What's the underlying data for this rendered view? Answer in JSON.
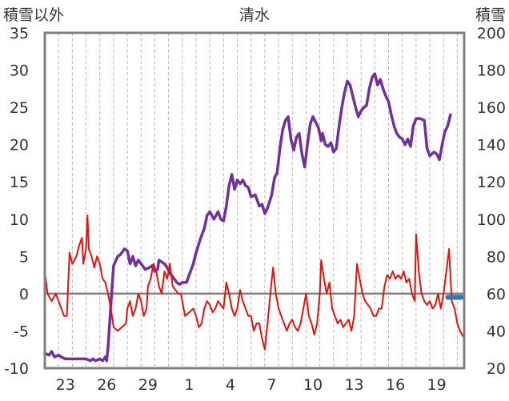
{
  "chart_data": {
    "type": "line",
    "title": "清水",
    "left_axis_label": "積雪以外",
    "right_axis_label": "積雪",
    "left_axis": {
      "min": -10,
      "max": 35,
      "ticks": [
        "35",
        "30",
        "25",
        "20",
        "15",
        "10",
        "5",
        "0",
        "-5",
        "-10"
      ]
    },
    "right_axis": {
      "min": 20,
      "max": 200,
      "ticks": [
        "200",
        "180",
        "160",
        "140",
        "120",
        "100",
        "80",
        "60",
        "40",
        "20"
      ]
    },
    "x_ticks": [
      "23",
      "26",
      "29",
      "1",
      "4",
      "7",
      "10",
      "13",
      "16",
      "19"
    ],
    "x_tick_day_index": [
      1.5,
      4.5,
      7.5,
      10.5,
      13.5,
      16.5,
      19.5,
      22.5,
      25.5,
      28.5
    ],
    "x_range_days": [
      0,
      30.5
    ],
    "grid": {
      "vertical": "dashed",
      "horizontal": "none"
    },
    "zero_line_value": 0,
    "series": [
      {
        "axis": "right",
        "color": "#7030a0",
        "points": [
          [
            0.0,
            28
          ],
          [
            0.3,
            27
          ],
          [
            0.5,
            29
          ],
          [
            0.7,
            26
          ],
          [
            1.0,
            27
          ],
          [
            1.2,
            26
          ],
          [
            1.5,
            25
          ],
          [
            2.0,
            25
          ],
          [
            2.5,
            25
          ],
          [
            3.0,
            25
          ],
          [
            3.3,
            24
          ],
          [
            3.5,
            25
          ],
          [
            3.7,
            24
          ],
          [
            4.0,
            25
          ],
          [
            4.2,
            24
          ],
          [
            4.4,
            26
          ],
          [
            4.5,
            24
          ],
          [
            4.6,
            31
          ],
          [
            4.8,
            54
          ],
          [
            5.0,
            75
          ],
          [
            5.3,
            80
          ],
          [
            5.5,
            81
          ],
          [
            5.8,
            84
          ],
          [
            6.0,
            83
          ],
          [
            6.2,
            76
          ],
          [
            6.4,
            80
          ],
          [
            6.6,
            75
          ],
          [
            6.8,
            78
          ],
          [
            7.0,
            76
          ],
          [
            7.3,
            73
          ],
          [
            7.6,
            74
          ],
          [
            7.8,
            75
          ],
          [
            8.0,
            72
          ],
          [
            8.2,
            73
          ],
          [
            8.3,
            78
          ],
          [
            8.5,
            77
          ],
          [
            8.7,
            76
          ],
          [
            8.9,
            74
          ],
          [
            9.1,
            71
          ],
          [
            9.3,
            69
          ],
          [
            9.6,
            66
          ],
          [
            9.8,
            65
          ],
          [
            10.0,
            66
          ],
          [
            10.3,
            66
          ],
          [
            10.5,
            70
          ],
          [
            10.8,
            76
          ],
          [
            11.0,
            82
          ],
          [
            11.3,
            89
          ],
          [
            11.6,
            95
          ],
          [
            11.8,
            102
          ],
          [
            12.0,
            104
          ],
          [
            12.3,
            100
          ],
          [
            12.6,
            104
          ],
          [
            12.8,
            100
          ],
          [
            13.0,
            99
          ],
          [
            13.2,
            107
          ],
          [
            13.4,
            118
          ],
          [
            13.6,
            124
          ],
          [
            13.8,
            116
          ],
          [
            14.0,
            121
          ],
          [
            14.2,
            119
          ],
          [
            14.4,
            121
          ],
          [
            14.6,
            118
          ],
          [
            14.8,
            117
          ],
          [
            15.0,
            112
          ],
          [
            15.3,
            113
          ],
          [
            15.6,
            107
          ],
          [
            15.8,
            108
          ],
          [
            16.0,
            103
          ],
          [
            16.2,
            106
          ],
          [
            16.5,
            113
          ],
          [
            16.7,
            122
          ],
          [
            16.9,
            125
          ],
          [
            17.1,
            138
          ],
          [
            17.3,
            148
          ],
          [
            17.5,
            153
          ],
          [
            17.7,
            155
          ],
          [
            17.9,
            143
          ],
          [
            18.1,
            137
          ],
          [
            18.3,
            144
          ],
          [
            18.5,
            146
          ],
          [
            18.7,
            135
          ],
          [
            18.9,
            128
          ],
          [
            19.1,
            140
          ],
          [
            19.3,
            151
          ],
          [
            19.5,
            155
          ],
          [
            19.7,
            152
          ],
          [
            19.9,
            149
          ],
          [
            20.1,
            142
          ],
          [
            20.2,
            146
          ],
          [
            20.4,
            140
          ],
          [
            20.6,
            139
          ],
          [
            20.8,
            141
          ],
          [
            21.0,
            136
          ],
          [
            21.2,
            138
          ],
          [
            21.4,
            150
          ],
          [
            21.6,
            160
          ],
          [
            21.8,
            168
          ],
          [
            22.0,
            174
          ],
          [
            22.2,
            172
          ],
          [
            22.4,
            166
          ],
          [
            22.6,
            160
          ],
          [
            22.8,
            155
          ],
          [
            23.0,
            158
          ],
          [
            23.2,
            160
          ],
          [
            23.4,
            161
          ],
          [
            23.6,
            170
          ],
          [
            23.8,
            176
          ],
          [
            24.0,
            178
          ],
          [
            24.2,
            172
          ],
          [
            24.4,
            175
          ],
          [
            24.6,
            170
          ],
          [
            24.8,
            166
          ],
          [
            25.0,
            163
          ],
          [
            25.2,
            156
          ],
          [
            25.4,
            150
          ],
          [
            25.6,
            146
          ],
          [
            25.8,
            144
          ],
          [
            26.0,
            143
          ],
          [
            26.2,
            140
          ],
          [
            26.4,
            143
          ],
          [
            26.6,
            139
          ],
          [
            26.8,
            150
          ],
          [
            27.0,
            154
          ],
          [
            27.3,
            154
          ],
          [
            27.6,
            153
          ],
          [
            27.8,
            138
          ],
          [
            28.0,
            134
          ],
          [
            28.3,
            136
          ],
          [
            28.5,
            135
          ],
          [
            28.7,
            132
          ],
          [
            28.9,
            140
          ],
          [
            29.1,
            147
          ],
          [
            29.3,
            150
          ],
          [
            29.5,
            156
          ]
        ]
      },
      {
        "axis": "left",
        "color": "#e8120a",
        "points": [
          [
            0.0,
            3
          ],
          [
            0.2,
            0
          ],
          [
            0.5,
            -1
          ],
          [
            0.8,
            0
          ],
          [
            1.0,
            -1
          ],
          [
            1.2,
            -2
          ],
          [
            1.4,
            -3
          ],
          [
            1.6,
            -3
          ],
          [
            1.8,
            5.5
          ],
          [
            2.0,
            4
          ],
          [
            2.3,
            5
          ],
          [
            2.5,
            6.5
          ],
          [
            2.7,
            7.5
          ],
          [
            2.8,
            4
          ],
          [
            3.0,
            6
          ],
          [
            3.1,
            10.5
          ],
          [
            3.2,
            6
          ],
          [
            3.4,
            5
          ],
          [
            3.6,
            3.5
          ],
          [
            3.8,
            5
          ],
          [
            4.0,
            4
          ],
          [
            4.2,
            2
          ],
          [
            4.4,
            1.5
          ],
          [
            4.6,
            0
          ],
          [
            4.8,
            -2
          ],
          [
            5.0,
            -4.5
          ],
          [
            5.3,
            -5
          ],
          [
            5.6,
            -4.5
          ],
          [
            5.9,
            -4
          ],
          [
            6.0,
            -2
          ],
          [
            6.2,
            -1
          ],
          [
            6.4,
            -3
          ],
          [
            6.6,
            -2
          ],
          [
            6.8,
            0
          ],
          [
            7.0,
            -1
          ],
          [
            7.2,
            -3
          ],
          [
            7.4,
            -2
          ],
          [
            7.5,
            1
          ],
          [
            7.7,
            2
          ],
          [
            7.9,
            4
          ],
          [
            8.1,
            3
          ],
          [
            8.3,
            1
          ],
          [
            8.5,
            0
          ],
          [
            8.7,
            3
          ],
          [
            8.9,
            2
          ],
          [
            9.1,
            4
          ],
          [
            9.3,
            1
          ],
          [
            9.5,
            0.5
          ],
          [
            9.7,
            0
          ],
          [
            9.9,
            0
          ],
          [
            10.0,
            -1
          ],
          [
            10.2,
            -3
          ],
          [
            10.5,
            -2.5
          ],
          [
            10.8,
            -2
          ],
          [
            11.0,
            -3
          ],
          [
            11.2,
            -4.5
          ],
          [
            11.4,
            -4
          ],
          [
            11.6,
            -2
          ],
          [
            11.8,
            -1
          ],
          [
            12.0,
            -1.5
          ],
          [
            12.2,
            -2.5
          ],
          [
            12.4,
            -2
          ],
          [
            12.6,
            -1
          ],
          [
            12.8,
            -1.5
          ],
          [
            13.0,
            -2
          ],
          [
            13.2,
            1.5
          ],
          [
            13.4,
            0
          ],
          [
            13.6,
            -2
          ],
          [
            13.8,
            -3
          ],
          [
            14.0,
            -2
          ],
          [
            14.2,
            0.5
          ],
          [
            14.4,
            -1
          ],
          [
            14.6,
            -2
          ],
          [
            14.8,
            -3
          ],
          [
            15.0,
            -3
          ],
          [
            15.2,
            -5
          ],
          [
            15.4,
            -4
          ],
          [
            15.6,
            -4
          ],
          [
            15.8,
            -6
          ],
          [
            16.0,
            -7.5
          ],
          [
            16.2,
            -4
          ],
          [
            16.4,
            0
          ],
          [
            16.6,
            3.5
          ],
          [
            16.8,
            0
          ],
          [
            17.0,
            -2
          ],
          [
            17.2,
            -3
          ],
          [
            17.4,
            -4
          ],
          [
            17.6,
            -5
          ],
          [
            17.8,
            -4
          ],
          [
            18.0,
            -3.5
          ],
          [
            18.2,
            -4.5
          ],
          [
            18.4,
            -5
          ],
          [
            18.6,
            -4
          ],
          [
            18.8,
            -2
          ],
          [
            19.0,
            0
          ],
          [
            19.2,
            -3
          ],
          [
            19.4,
            -4
          ],
          [
            19.6,
            -5.5
          ],
          [
            19.8,
            -4
          ],
          [
            20.0,
            0
          ],
          [
            20.1,
            4.5
          ],
          [
            20.3,
            2
          ],
          [
            20.5,
            0
          ],
          [
            20.7,
            1.5
          ],
          [
            20.9,
            -2
          ],
          [
            21.1,
            -3
          ],
          [
            21.3,
            -4
          ],
          [
            21.5,
            -3.5
          ],
          [
            21.7,
            -4.5
          ],
          [
            21.9,
            -4
          ],
          [
            22.1,
            -3.5
          ],
          [
            22.3,
            -5
          ],
          [
            22.5,
            -3
          ],
          [
            22.7,
            4
          ],
          [
            22.9,
            2
          ],
          [
            23.1,
            0
          ],
          [
            23.3,
            -1
          ],
          [
            23.5,
            -1.5
          ],
          [
            23.7,
            -2
          ],
          [
            23.9,
            -3
          ],
          [
            24.1,
            -3
          ],
          [
            24.3,
            -2
          ],
          [
            24.5,
            -2
          ],
          [
            24.7,
            1
          ],
          [
            24.9,
            2.5
          ],
          [
            25.1,
            2
          ],
          [
            25.3,
            3
          ],
          [
            25.5,
            2
          ],
          [
            25.7,
            2.5
          ],
          [
            25.9,
            2
          ],
          [
            26.1,
            3
          ],
          [
            26.3,
            1.5
          ],
          [
            26.5,
            2
          ],
          [
            26.7,
            0
          ],
          [
            26.9,
            -1
          ],
          [
            27.0,
            8
          ],
          [
            27.2,
            3
          ],
          [
            27.4,
            0
          ],
          [
            27.6,
            -1
          ],
          [
            27.8,
            -1.5
          ],
          [
            28.0,
            -1
          ],
          [
            28.2,
            -2
          ],
          [
            28.4,
            -1.5
          ],
          [
            28.6,
            0
          ],
          [
            28.8,
            -2
          ],
          [
            29.0,
            0
          ],
          [
            29.2,
            3
          ],
          [
            29.4,
            6
          ],
          [
            29.6,
            -1
          ],
          [
            29.8,
            -2
          ],
          [
            30.0,
            -4
          ],
          [
            30.2,
            -5
          ],
          [
            30.5,
            -6
          ]
        ]
      },
      {
        "axis": "left",
        "color": "#2e75b6",
        "points": [
          [
            29.3,
            -0.5
          ],
          [
            29.6,
            -0.5
          ],
          [
            30.0,
            -0.5
          ],
          [
            30.3,
            -0.5
          ]
        ]
      }
    ]
  }
}
